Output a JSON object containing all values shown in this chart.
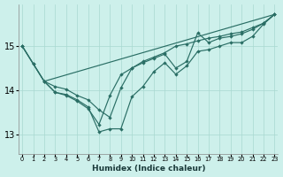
{
  "xlabel": "Humidex (Indice chaleur)",
  "bg_color": "#cdf0eb",
  "line_color": "#2a6e65",
  "grid_color": "#a8d8d0",
  "xlim": [
    -0.3,
    23.3
  ],
  "ylim": [
    12.55,
    15.95
  ],
  "yticks": [
    13,
    14,
    15
  ],
  "ytick_labels": [
    "13",
    "14",
    "15"
  ],
  "line1_y": [
    15.0,
    14.6,
    14.2,
    13.95,
    13.9,
    13.78,
    13.62,
    13.05,
    13.12,
    13.12,
    13.85,
    14.08,
    14.42,
    14.62,
    14.36,
    14.55,
    14.88,
    14.92,
    15.0,
    15.08,
    15.08,
    15.22,
    15.5,
    15.72
  ],
  "line2_y": [
    15.0,
    14.6,
    14.2,
    14.08,
    14.02,
    13.88,
    13.78,
    13.55,
    13.38,
    14.05,
    14.5,
    14.65,
    14.75,
    14.85,
    15.0,
    15.05,
    15.12,
    15.18,
    15.22,
    15.28,
    15.32,
    15.42,
    15.52,
    15.72
  ],
  "line3_x": [
    0,
    2,
    3,
    4,
    5,
    6,
    7,
    8,
    9,
    10,
    11,
    12,
    13,
    14,
    15,
    16,
    17,
    18,
    19,
    20,
    21,
    22,
    23
  ],
  "line3_y": [
    15.0,
    14.2,
    13.95,
    13.88,
    13.75,
    13.58,
    13.22,
    13.88,
    14.35,
    14.5,
    14.62,
    14.72,
    14.82,
    14.5,
    14.65,
    15.3,
    15.08,
    15.18,
    15.22,
    15.28,
    15.38,
    15.52,
    15.72
  ],
  "line4_x": [
    2,
    23
  ],
  "line4_y": [
    14.2,
    15.72
  ]
}
